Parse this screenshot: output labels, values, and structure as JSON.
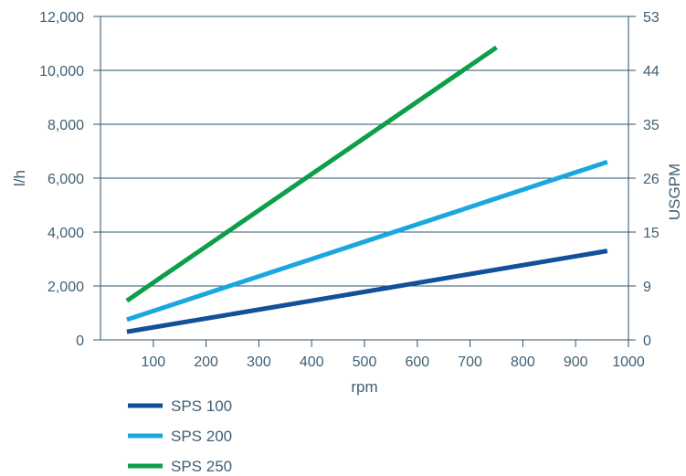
{
  "chart_data": {
    "type": "line",
    "title": "",
    "xlabel": "rpm",
    "ylabel": "l/h",
    "y2label": "USGPM",
    "xlim": [
      0,
      1000
    ],
    "ylim": [
      0,
      12000
    ],
    "x_ticks": [
      "100",
      "200",
      "300",
      "400",
      "500",
      "600",
      "700",
      "800",
      "900",
      "1000"
    ],
    "y_ticks": [
      "0",
      "2,000",
      "4,000",
      "6,000",
      "8,000",
      "10,000",
      "12,000"
    ],
    "y2_ticks": [
      "0",
      "9",
      "15",
      "26",
      "35",
      "44",
      "53"
    ],
    "grid": "horizontal",
    "legend_position": "bottom-left",
    "series": [
      {
        "name": "SPS 100",
        "color": "#12509a",
        "x": [
          50,
          960
        ],
        "y": [
          300,
          3300
        ]
      },
      {
        "name": "SPS 200",
        "color": "#1aa7e0",
        "x": [
          50,
          960
        ],
        "y": [
          750,
          6600
        ]
      },
      {
        "name": "SPS 250",
        "color": "#0c9e48",
        "x": [
          50,
          750
        ],
        "y": [
          1450,
          10850
        ]
      }
    ]
  }
}
